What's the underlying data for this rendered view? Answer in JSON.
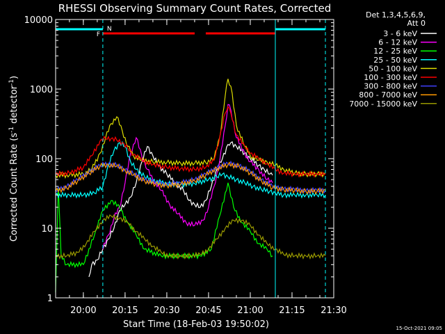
{
  "chart_data": {
    "type": "line",
    "title": "RHESSI Observing Summary Count Rates, Corrected",
    "xlabel": "Start Time (18-Feb-03 19:50:02)",
    "ylabel_main": "Corrected Count Rate (s",
    "ylabel_sup1": "-1",
    "ylabel_mid": " detector",
    "ylabel_sup2": "-1",
    "ylabel_end": ")",
    "y_scale": "log",
    "ylim": [
      1,
      10000
    ],
    "xlim": [
      "19:50:02",
      "21:30:00"
    ],
    "x_ticks": [
      "20:00",
      "20:15",
      "20:30",
      "20:45",
      "21:00",
      "21:15",
      "21:30"
    ],
    "y_ticks": [
      "1",
      "10",
      "100",
      "1000",
      "10000"
    ],
    "legend_header": "Det 1,3,4,5,6,9,",
    "legend_header2": "Att 0",
    "legend_position": "top-right",
    "flags": {
      "N_label": "N",
      "F_label": "F",
      "night_color": "#00ffff",
      "flare_color": "#ff0000",
      "night_intervals": [
        [
          "19:50",
          "20:07"
        ],
        [
          "21:09",
          "21:27"
        ]
      ],
      "flare_intervals": [
        [
          "20:07",
          "20:40"
        ],
        [
          "20:44",
          "21:09"
        ]
      ]
    },
    "vlines": [
      "20:07",
      "21:27"
    ],
    "solid_vline": "21:09",
    "series": [
      {
        "name": "3 - 6 keV",
        "color": "#ffffff",
        "points": [
          [
            "20:02",
            2
          ],
          [
            "20:03",
            3
          ],
          [
            "20:05",
            3.5
          ],
          [
            "20:07",
            5
          ],
          [
            "20:09",
            7
          ],
          [
            "20:11",
            10
          ],
          [
            "20:13",
            18
          ],
          [
            "20:15",
            22
          ],
          [
            "20:17",
            28
          ],
          [
            "20:19",
            45
          ],
          [
            "20:21",
            90
          ],
          [
            "20:23",
            150
          ],
          [
            "20:25",
            110
          ],
          [
            "20:27",
            80
          ],
          [
            "20:30",
            60
          ],
          [
            "20:33",
            45
          ],
          [
            "20:36",
            35
          ],
          [
            "20:38",
            25
          ],
          [
            "20:40",
            22
          ],
          [
            "20:42",
            20
          ],
          [
            "20:44",
            25
          ],
          [
            "20:46",
            40
          ],
          [
            "20:48",
            70
          ],
          [
            "20:50",
            100
          ],
          [
            "20:52",
            160
          ],
          [
            "20:53",
            170
          ],
          [
            "20:55",
            150
          ],
          [
            "20:58",
            120
          ],
          [
            "21:00",
            100
          ],
          [
            "21:03",
            80
          ],
          [
            "21:05",
            70
          ],
          [
            "21:07",
            60
          ],
          [
            "21:08",
            58
          ]
        ]
      },
      {
        "name": "6 - 12 keV",
        "color": "#ff00ff",
        "points": [
          [
            "20:07",
            5
          ],
          [
            "20:09",
            8
          ],
          [
            "20:11",
            14
          ],
          [
            "20:13",
            20
          ],
          [
            "20:15",
            45
          ],
          [
            "20:17",
            120
          ],
          [
            "20:19",
            200
          ],
          [
            "20:21",
            110
          ],
          [
            "20:23",
            70
          ],
          [
            "20:25",
            50
          ],
          [
            "20:28",
            35
          ],
          [
            "20:31",
            22
          ],
          [
            "20:34",
            16
          ],
          [
            "20:37",
            12
          ],
          [
            "20:40",
            11
          ],
          [
            "20:43",
            13
          ],
          [
            "20:45",
            20
          ],
          [
            "20:47",
            40
          ],
          [
            "20:49",
            90
          ],
          [
            "20:51",
            300
          ],
          [
            "20:52",
            600
          ],
          [
            "20:53",
            500
          ],
          [
            "20:55",
            200
          ],
          [
            "20:58",
            120
          ],
          [
            "21:00",
            90
          ],
          [
            "21:03",
            70
          ],
          [
            "21:06",
            50
          ],
          [
            "21:08",
            45
          ]
        ]
      },
      {
        "name": "12 - 25 keV",
        "color": "#00ff00",
        "points": [
          [
            "19:50",
            1.2
          ],
          [
            "19:51",
            40
          ],
          [
            "19:52",
            4
          ],
          [
            "19:54",
            3
          ],
          [
            "20:00",
            3
          ],
          [
            "20:04",
            8
          ],
          [
            "20:07",
            18
          ],
          [
            "20:10",
            25
          ],
          [
            "20:13",
            20
          ],
          [
            "20:16",
            12
          ],
          [
            "20:19",
            8
          ],
          [
            "20:22",
            5
          ],
          [
            "20:28",
            4
          ],
          [
            "20:35",
            4
          ],
          [
            "20:42",
            4
          ],
          [
            "20:46",
            5
          ],
          [
            "20:49",
            15
          ],
          [
            "20:52",
            45
          ],
          [
            "20:54",
            20
          ],
          [
            "20:57",
            12
          ],
          [
            "21:00",
            9
          ],
          [
            "21:03",
            6
          ],
          [
            "21:06",
            5
          ],
          [
            "21:08",
            4
          ]
        ]
      },
      {
        "name": "25 - 50 keV",
        "color": "#00ffff",
        "points": [
          [
            "19:50",
            30
          ],
          [
            "19:55",
            30
          ],
          [
            "20:00",
            30
          ],
          [
            "20:04",
            32
          ],
          [
            "20:07",
            40
          ],
          [
            "20:09",
            80
          ],
          [
            "20:11",
            130
          ],
          [
            "20:13",
            170
          ],
          [
            "20:15",
            150
          ],
          [
            "20:17",
            90
          ],
          [
            "20:19",
            70
          ],
          [
            "20:22",
            55
          ],
          [
            "20:25",
            48
          ],
          [
            "20:30",
            44
          ],
          [
            "20:35",
            42
          ],
          [
            "20:40",
            44
          ],
          [
            "20:45",
            50
          ],
          [
            "20:48",
            55
          ],
          [
            "20:50",
            60
          ],
          [
            "20:52",
            55
          ],
          [
            "20:55",
            50
          ],
          [
            "20:58",
            45
          ],
          [
            "21:01",
            40
          ],
          [
            "21:04",
            36
          ],
          [
            "21:07",
            34
          ],
          [
            "21:09",
            32
          ],
          [
            "21:12",
            30
          ],
          [
            "21:16",
            30
          ],
          [
            "21:20",
            30
          ],
          [
            "21:24",
            30
          ],
          [
            "21:27",
            30
          ]
        ]
      },
      {
        "name": "50 - 100 keV",
        "color": "#dddd00",
        "points": [
          [
            "19:50",
            58
          ],
          [
            "19:55",
            58
          ],
          [
            "20:00",
            60
          ],
          [
            "20:03",
            70
          ],
          [
            "20:06",
            120
          ],
          [
            "20:08",
            200
          ],
          [
            "20:10",
            320
          ],
          [
            "20:12",
            400
          ],
          [
            "20:14",
            250
          ],
          [
            "20:16",
            150
          ],
          [
            "20:18",
            110
          ],
          [
            "20:21",
            95
          ],
          [
            "20:25",
            90
          ],
          [
            "20:30",
            88
          ],
          [
            "20:35",
            86
          ],
          [
            "20:40",
            86
          ],
          [
            "20:44",
            88
          ],
          [
            "20:47",
            100
          ],
          [
            "20:49",
            200
          ],
          [
            "20:51",
            800
          ],
          [
            "20:52",
            1400
          ],
          [
            "20:53",
            1100
          ],
          [
            "20:55",
            300
          ],
          [
            "20:58",
            150
          ],
          [
            "21:00",
            110
          ],
          [
            "21:03",
            95
          ],
          [
            "21:06",
            90
          ],
          [
            "21:09",
            80
          ],
          [
            "21:12",
            70
          ],
          [
            "21:16",
            62
          ],
          [
            "21:20",
            60
          ],
          [
            "21:24",
            60
          ],
          [
            "21:27",
            60
          ]
        ]
      },
      {
        "name": "100 - 300 keV",
        "color": "#ff0000",
        "points": [
          [
            "19:50",
            60
          ],
          [
            "19:55",
            62
          ],
          [
            "20:00",
            75
          ],
          [
            "20:03",
            110
          ],
          [
            "20:06",
            180
          ],
          [
            "20:08",
            195
          ],
          [
            "20:10",
            195
          ],
          [
            "20:12",
            185
          ],
          [
            "20:14",
            170
          ],
          [
            "20:16",
            140
          ],
          [
            "20:18",
            115
          ],
          [
            "20:21",
            95
          ],
          [
            "20:25",
            82
          ],
          [
            "20:30",
            75
          ],
          [
            "20:35",
            72
          ],
          [
            "20:40",
            70
          ],
          [
            "20:44",
            75
          ],
          [
            "20:47",
            95
          ],
          [
            "20:49",
            200
          ],
          [
            "20:51",
            450
          ],
          [
            "20:52",
            560
          ],
          [
            "20:53",
            450
          ],
          [
            "20:55",
            220
          ],
          [
            "20:58",
            150
          ],
          [
            "21:00",
            120
          ],
          [
            "21:03",
            100
          ],
          [
            "21:06",
            85
          ],
          [
            "21:09",
            70
          ],
          [
            "21:12",
            62
          ],
          [
            "21:16",
            60
          ],
          [
            "21:20",
            60
          ],
          [
            "21:24",
            60
          ],
          [
            "21:27",
            62
          ]
        ]
      },
      {
        "name": "300 - 800 keV",
        "color": "#4040ff",
        "points": [
          [
            "19:50",
            35
          ],
          [
            "19:54",
            40
          ],
          [
            "19:58",
            50
          ],
          [
            "20:02",
            65
          ],
          [
            "20:06",
            80
          ],
          [
            "20:09",
            85
          ],
          [
            "20:12",
            80
          ],
          [
            "20:15",
            70
          ],
          [
            "20:18",
            60
          ],
          [
            "20:22",
            50
          ],
          [
            "20:26",
            45
          ],
          [
            "20:30",
            43
          ],
          [
            "20:35",
            45
          ],
          [
            "20:40",
            50
          ],
          [
            "20:44",
            60
          ],
          [
            "20:48",
            75
          ],
          [
            "20:52",
            85
          ],
          [
            "20:56",
            80
          ],
          [
            "21:00",
            65
          ],
          [
            "21:04",
            50
          ],
          [
            "21:08",
            40
          ],
          [
            "21:12",
            37
          ],
          [
            "21:16",
            36
          ],
          [
            "21:20",
            35
          ],
          [
            "21:24",
            35
          ],
          [
            "21:27",
            35
          ]
        ]
      },
      {
        "name": "800 - 7000 keV",
        "color": "#ff9900",
        "points": [
          [
            "19:50",
            34
          ],
          [
            "19:54",
            38
          ],
          [
            "19:58",
            48
          ],
          [
            "20:02",
            62
          ],
          [
            "20:06",
            78
          ],
          [
            "20:09",
            82
          ],
          [
            "20:12",
            78
          ],
          [
            "20:15",
            68
          ],
          [
            "20:18",
            58
          ],
          [
            "20:22",
            48
          ],
          [
            "20:26",
            43
          ],
          [
            "20:30",
            41
          ],
          [
            "20:35",
            43
          ],
          [
            "20:40",
            48
          ],
          [
            "20:44",
            58
          ],
          [
            "20:48",
            72
          ],
          [
            "20:52",
            82
          ],
          [
            "20:56",
            78
          ],
          [
            "21:00",
            62
          ],
          [
            "21:04",
            48
          ],
          [
            "21:08",
            38
          ],
          [
            "21:12",
            36
          ],
          [
            "21:16",
            35
          ],
          [
            "21:20",
            34
          ],
          [
            "21:24",
            34
          ],
          [
            "21:27",
            35
          ]
        ]
      },
      {
        "name": "7000 - 15000 keV",
        "color": "#999900",
        "points": [
          [
            "19:50",
            4
          ],
          [
            "19:54",
            4
          ],
          [
            "19:58",
            4.5
          ],
          [
            "20:01",
            6
          ],
          [
            "20:04",
            9
          ],
          [
            "20:07",
            13
          ],
          [
            "20:10",
            15
          ],
          [
            "20:13",
            14
          ],
          [
            "20:16",
            12
          ],
          [
            "20:19",
            9
          ],
          [
            "20:22",
            7
          ],
          [
            "20:25",
            5.5
          ],
          [
            "20:28",
            4.5
          ],
          [
            "20:31",
            4
          ],
          [
            "20:35",
            4
          ],
          [
            "20:39",
            4
          ],
          [
            "20:42",
            4.2
          ],
          [
            "20:45",
            5
          ],
          [
            "20:48",
            7
          ],
          [
            "20:51",
            10
          ],
          [
            "20:54",
            13
          ],
          [
            "20:57",
            13
          ],
          [
            "21:00",
            11
          ],
          [
            "21:03",
            8
          ],
          [
            "21:06",
            6
          ],
          [
            "21:09",
            5
          ],
          [
            "21:12",
            4.2
          ],
          [
            "21:16",
            4
          ],
          [
            "21:20",
            4
          ],
          [
            "21:24",
            4
          ],
          [
            "21:27",
            4
          ]
        ]
      }
    ]
  },
  "timestamp": "15-Oct-2021 09:05"
}
